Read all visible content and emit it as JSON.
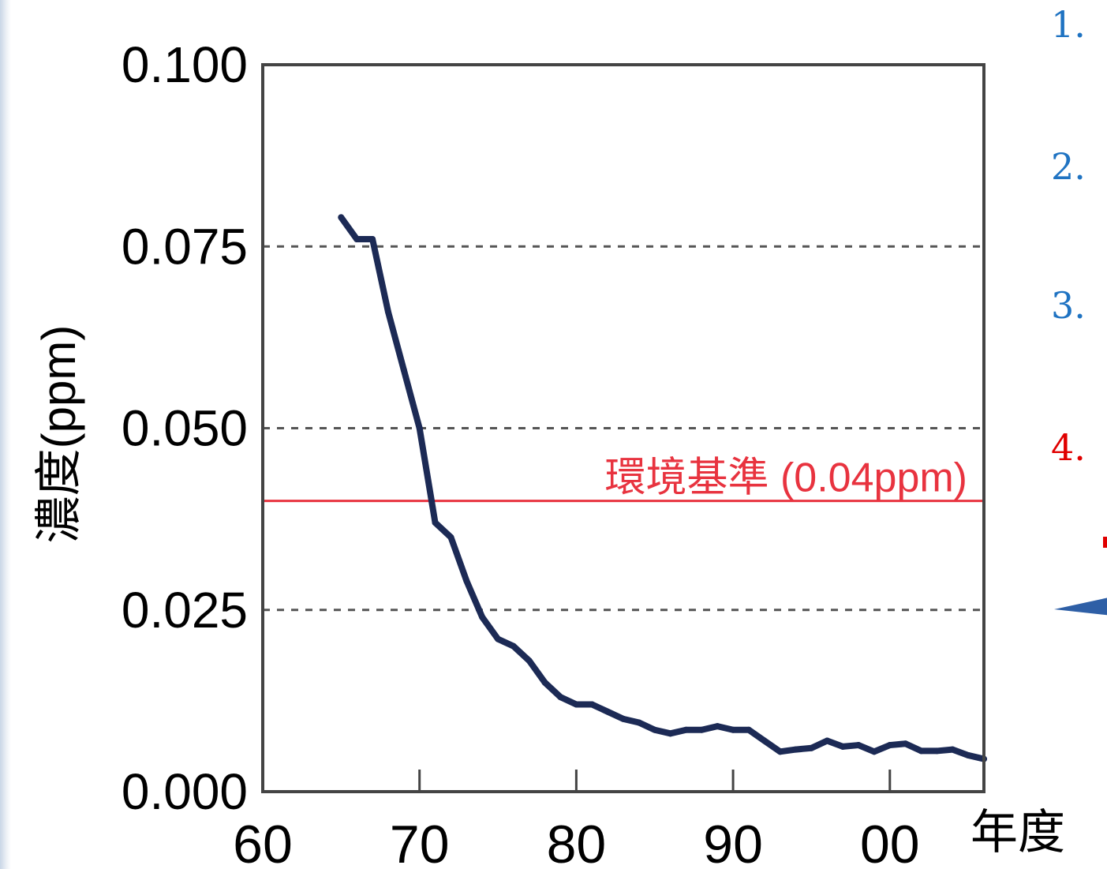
{
  "chart_data": {
    "type": "line",
    "ylabel": "濃度(ppm)",
    "xlabel": "年度",
    "ylim": [
      0,
      0.1
    ],
    "xlim": [
      1960,
      2006
    ],
    "yticks": [
      0.0,
      0.025,
      0.05,
      0.075,
      0.1
    ],
    "ytick_labels": [
      "0.000",
      "0.025",
      "0.050",
      "0.075",
      "0.100"
    ],
    "xticks": [
      1960,
      1970,
      1980,
      1990,
      2000
    ],
    "xtick_labels": [
      "60",
      "70",
      "80",
      "90",
      "00"
    ],
    "grid": "dashed horizontal at 0.025, 0.050, 0.075",
    "series": [
      {
        "x": [
          1965,
          1966,
          1967,
          1968,
          1969,
          1970,
          1971,
          1972,
          1973,
          1974,
          1975,
          1976,
          1977,
          1978,
          1979,
          1980,
          1981,
          1982,
          1983,
          1984,
          1985,
          1986,
          1987,
          1988,
          1989,
          1990,
          1991,
          1992,
          1993,
          1994,
          1995,
          1996,
          1997,
          1998,
          1999,
          2000,
          2001,
          2002,
          2003,
          2004,
          2005,
          2006
        ],
        "values": [
          0.079,
          0.076,
          0.076,
          0.066,
          0.058,
          0.05,
          0.037,
          0.035,
          0.029,
          0.024,
          0.021,
          0.02,
          0.018,
          0.015,
          0.013,
          0.012,
          0.012,
          0.011,
          0.01,
          0.0095,
          0.0085,
          0.008,
          0.0085,
          0.0085,
          0.009,
          0.0085,
          0.0085,
          0.007,
          0.0055,
          0.0058,
          0.006,
          0.007,
          0.0062,
          0.0064,
          0.0055,
          0.0064,
          0.0066,
          0.0056,
          0.0056,
          0.0058,
          0.005,
          0.0045
        ],
        "color": "#1c2a55"
      }
    ],
    "annotations": [
      {
        "text": "環境基準 (0.04ppm)",
        "y": 0.04,
        "color": "#e8333f"
      }
    ]
  },
  "side_list": [
    {
      "text": "1.",
      "color": "#1f73c2"
    },
    {
      "text": "2.",
      "color": "#1f73c2"
    },
    {
      "text": "3.",
      "color": "#1f73c2"
    },
    {
      "text": "4.",
      "color": "#e00000"
    }
  ]
}
